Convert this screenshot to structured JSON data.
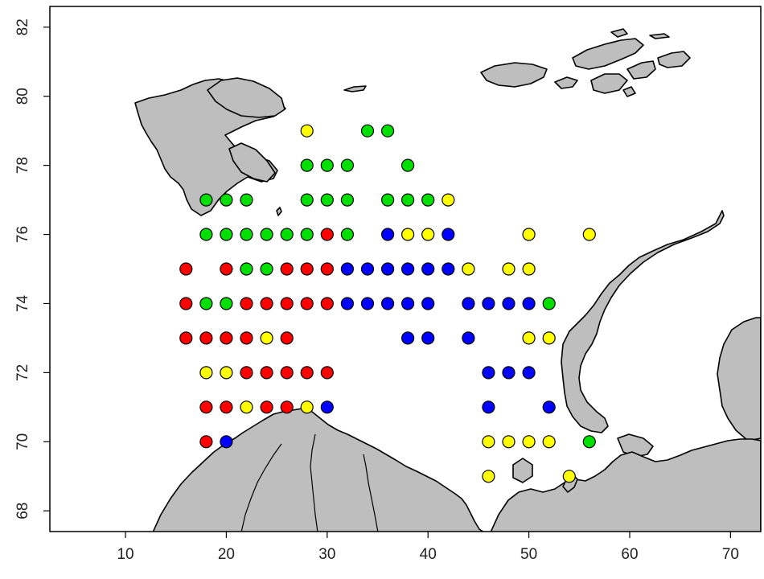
{
  "chart_data": {
    "type": "scatter",
    "title": "",
    "xlabel": "",
    "ylabel": "",
    "xlim": [
      2.5,
      73
    ],
    "ylim": [
      67.4,
      82.6
    ],
    "x_ticks": [
      "10",
      "20",
      "30",
      "40",
      "50",
      "60",
      "70"
    ],
    "y_ticks": [
      "68",
      "70",
      "72",
      "74",
      "76",
      "78",
      "80",
      "82"
    ],
    "land_color": "#bebebe",
    "series": [
      {
        "color": "#ff0000",
        "points": [
          [
            30,
            76
          ],
          [
            16,
            75
          ],
          [
            20,
            75
          ],
          [
            26,
            75
          ],
          [
            28,
            75
          ],
          [
            30,
            75
          ],
          [
            16,
            74
          ],
          [
            22,
            74
          ],
          [
            24,
            74
          ],
          [
            26,
            74
          ],
          [
            28,
            74
          ],
          [
            30,
            74
          ],
          [
            16,
            73
          ],
          [
            18,
            73
          ],
          [
            20,
            73
          ],
          [
            22,
            73
          ],
          [
            26,
            73
          ],
          [
            22,
            72
          ],
          [
            24,
            72
          ],
          [
            26,
            72
          ],
          [
            28,
            72
          ],
          [
            30,
            72
          ],
          [
            18,
            71
          ],
          [
            20,
            71
          ],
          [
            24,
            71
          ],
          [
            26,
            71
          ],
          [
            18,
            70
          ]
        ]
      },
      {
        "color": "#00e000",
        "points": [
          [
            34,
            79
          ],
          [
            36,
            79
          ],
          [
            28,
            78
          ],
          [
            30,
            78
          ],
          [
            32,
            78
          ],
          [
            38,
            78
          ],
          [
            18,
            77
          ],
          [
            20,
            77
          ],
          [
            22,
            77
          ],
          [
            28,
            77
          ],
          [
            30,
            77
          ],
          [
            32,
            77
          ],
          [
            36,
            77
          ],
          [
            38,
            77
          ],
          [
            40,
            77
          ],
          [
            18,
            76
          ],
          [
            20,
            76
          ],
          [
            22,
            76
          ],
          [
            24,
            76
          ],
          [
            26,
            76
          ],
          [
            28,
            76
          ],
          [
            32,
            76
          ],
          [
            22,
            75
          ],
          [
            24,
            75
          ],
          [
            18,
            74
          ],
          [
            20,
            74
          ],
          [
            52,
            74
          ],
          [
            56,
            70
          ]
        ]
      },
      {
        "color": "#0000ff",
        "points": [
          [
            36,
            76
          ],
          [
            42,
            76
          ],
          [
            32,
            75
          ],
          [
            34,
            75
          ],
          [
            36,
            75
          ],
          [
            38,
            75
          ],
          [
            40,
            75
          ],
          [
            42,
            75
          ],
          [
            32,
            74
          ],
          [
            34,
            74
          ],
          [
            36,
            74
          ],
          [
            38,
            74
          ],
          [
            40,
            74
          ],
          [
            44,
            74
          ],
          [
            46,
            74
          ],
          [
            48,
            74
          ],
          [
            50,
            74
          ],
          [
            38,
            73
          ],
          [
            40,
            73
          ],
          [
            44,
            73
          ],
          [
            46,
            72
          ],
          [
            48,
            72
          ],
          [
            50,
            72
          ],
          [
            30,
            71
          ],
          [
            46,
            71
          ],
          [
            52,
            71
          ],
          [
            20,
            70
          ]
        ]
      },
      {
        "color": "#ffff00",
        "points": [
          [
            28,
            79
          ],
          [
            42,
            77
          ],
          [
            38,
            76
          ],
          [
            40,
            76
          ],
          [
            50,
            76
          ],
          [
            56,
            76
          ],
          [
            44,
            75
          ],
          [
            48,
            75
          ],
          [
            50,
            75
          ],
          [
            24,
            73
          ],
          [
            50,
            73
          ],
          [
            52,
            73
          ],
          [
            18,
            72
          ],
          [
            20,
            72
          ],
          [
            22,
            71
          ],
          [
            28,
            71
          ],
          [
            46,
            70
          ],
          [
            48,
            70
          ],
          [
            50,
            70
          ],
          [
            52,
            70
          ],
          [
            46,
            69
          ],
          [
            54,
            69
          ]
        ]
      }
    ]
  }
}
